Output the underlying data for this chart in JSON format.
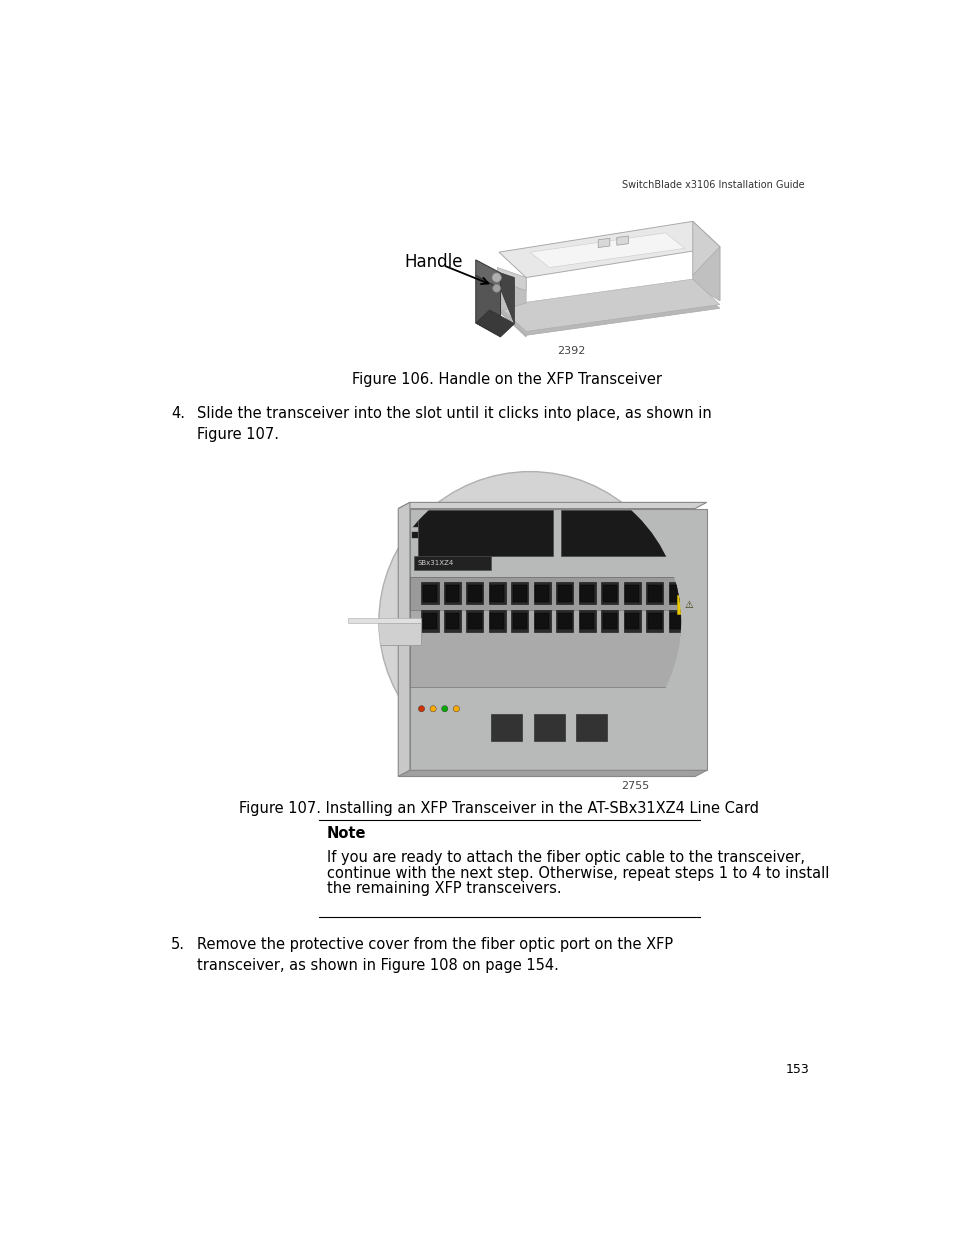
{
  "header_text": "SwitchBlade x3106 Installation Guide",
  "page_number": "153",
  "fig106_caption": "Figure 106. Handle on the XFP Transceiver",
  "fig106_label": "Handle",
  "fig106_image_code": "2392",
  "fig107_caption": "Figure 107. Installing an XFP Transceiver in the AT-SBx31XZ4 Line Card",
  "fig107_image_code": "2755",
  "step4_number": "4.",
  "step4_text": "Slide the transceiver into the slot until it clicks into place, as shown in\nFigure 107.",
  "step5_number": "5.",
  "step5_text": "Remove the protective cover from the fiber optic port on the XFP\ntransceiver, as shown in Figure 108 on page 154.",
  "note_title": "Note",
  "note_body": "If you are ready to attach the fiber optic cable to the transceiver,\ncontinue with the next step. Otherwise, repeat steps 1 to 4 to install\nthe remaining XFP transceivers.",
  "bg_color": "#ffffff",
  "text_color": "#000000"
}
